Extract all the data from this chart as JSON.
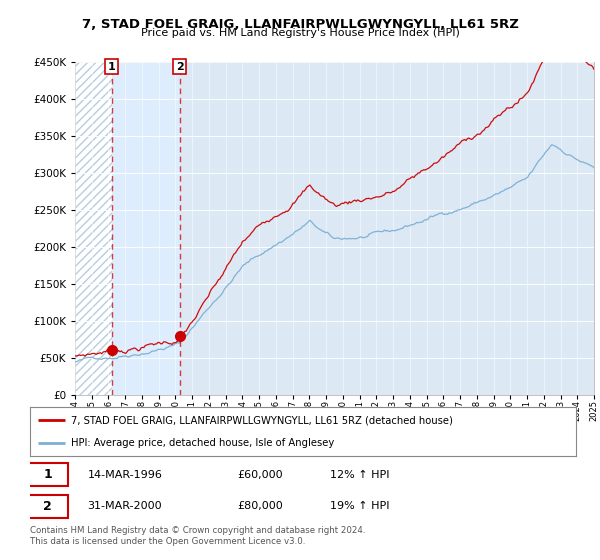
{
  "title": "7, STAD FOEL GRAIG, LLANFAIRPWLLGWYNGYLL, LL61 5RZ",
  "subtitle": "Price paid vs. HM Land Registry's House Price Index (HPI)",
  "legend_line1": "7, STAD FOEL GRAIG, LLANFAIRPWLLGWYNGYLL, LL61 5RZ (detached house)",
  "legend_line2": "HPI: Average price, detached house, Isle of Anglesey",
  "annotation1_label": "1",
  "annotation1_date": "14-MAR-1996",
  "annotation1_price": "£60,000",
  "annotation1_hpi": "12% ↑ HPI",
  "annotation1_year": 1996.2,
  "annotation1_value": 60000,
  "annotation2_label": "2",
  "annotation2_date": "31-MAR-2000",
  "annotation2_price": "£80,000",
  "annotation2_hpi": "19% ↑ HPI",
  "annotation2_year": 2000.25,
  "annotation2_value": 80000,
  "ymax": 450000,
  "ymin": 0,
  "xmin": 1994,
  "xmax": 2025,
  "background_color": "#ffffff",
  "plot_bg_color": "#dde8f5",
  "hatch_bg_color": "#ffffff",
  "hatch_color": "#b8cce0",
  "red_color": "#cc0000",
  "blue_color": "#7aafd4",
  "footer": "Contains HM Land Registry data © Crown copyright and database right 2024.\nThis data is licensed under the Open Government Licence v3.0."
}
